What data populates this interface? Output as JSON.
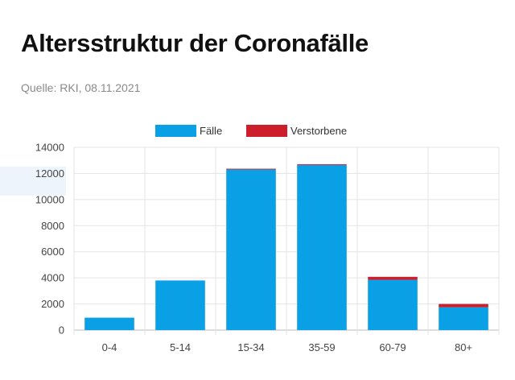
{
  "title": "Altersstruktur der Coronafälle",
  "source": "Quelle: RKI, 08.11.2021",
  "colors": {
    "faelle": "#0aa0e6",
    "verstorbene": "#cc1f2b",
    "grid": "#e4e4e4",
    "axis": "#bbbbbb"
  },
  "chart_data": {
    "type": "bar",
    "stacked": true,
    "categories": [
      "0-4",
      "5-14",
      "15-34",
      "35-59",
      "60-79",
      "80+"
    ],
    "series": [
      {
        "name": "Fälle",
        "values": [
          950,
          3800,
          12300,
          12650,
          3850,
          1750
        ]
      },
      {
        "name": "Verstorbene",
        "values": [
          0,
          0,
          5,
          40,
          230,
          250
        ]
      }
    ],
    "yticks": [
      "0",
      "2000",
      "4000",
      "6000",
      "8000",
      "10000",
      "12000",
      "14000"
    ],
    "ylim": [
      0,
      14000
    ],
    "grid": true,
    "legend": "top-center"
  }
}
